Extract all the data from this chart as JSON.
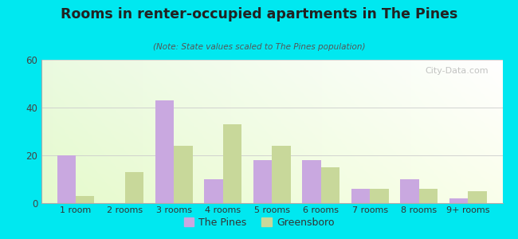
{
  "title": "Rooms in renter-occupied apartments in The Pines",
  "subtitle": "(Note: State values scaled to The Pines population)",
  "categories": [
    "1 room",
    "2 rooms",
    "3 rooms",
    "4 rooms",
    "5 rooms",
    "6 rooms",
    "7 rooms",
    "8 rooms",
    "9+ rooms"
  ],
  "pines_values": [
    20,
    0,
    43,
    10,
    18,
    18,
    6,
    10,
    2
  ],
  "greensboro_values": [
    3,
    13,
    24,
    33,
    24,
    15,
    6,
    6,
    5
  ],
  "pines_color": "#c9a8e0",
  "greensboro_color": "#c8d89a",
  "background_outer": "#00e8f0",
  "ylim": [
    0,
    60
  ],
  "yticks": [
    0,
    20,
    40,
    60
  ],
  "bar_width": 0.38,
  "legend_pines": "The Pines",
  "legend_greensboro": "Greensboro",
  "watermark": "City-Data.com"
}
